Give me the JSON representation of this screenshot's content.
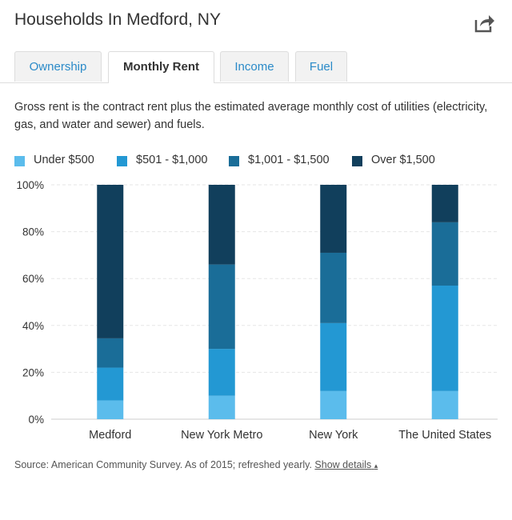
{
  "header": {
    "title": "Households In Medford, NY",
    "share_icon": "share-icon"
  },
  "tabs": [
    {
      "label": "Ownership",
      "active": false
    },
    {
      "label": "Monthly Rent",
      "active": true
    },
    {
      "label": "Income",
      "active": false
    },
    {
      "label": "Fuel",
      "active": false
    }
  ],
  "description": "Gross rent is the contract rent plus the estimated average monthly cost of utilities (electricity, gas, and water and sewer) and fuels.",
  "colors": {
    "under_500": "#5bbcec",
    "501_1000": "#2398d3",
    "1001_1500": "#1a6d98",
    "over_1500": "#113f5c",
    "grid": "#e6e6e6",
    "link": "#2a8ac8"
  },
  "chart_data": {
    "type": "bar",
    "stacked": true,
    "categories": [
      "Medford",
      "New York Metro",
      "New York",
      "The United States"
    ],
    "series": [
      {
        "name": "Under $500",
        "values": [
          8,
          10,
          12,
          12
        ]
      },
      {
        "name": "$501 - $1,000",
        "values": [
          14,
          20,
          29,
          45
        ]
      },
      {
        "name": "$1,001 - $1,500",
        "values": [
          12.5,
          36,
          30,
          27
        ]
      },
      {
        "name": "Over $1,500",
        "values": [
          65.5,
          34,
          29,
          16
        ]
      }
    ],
    "ylim": [
      0,
      100
    ],
    "yticks": [
      "0%",
      "20%",
      "40%",
      "60%",
      "80%",
      "100%"
    ],
    "ytick_values": [
      0,
      20,
      40,
      60,
      80,
      100
    ],
    "grid": true,
    "legend": "top-left"
  },
  "footer": {
    "source_text": "Source: American Community Survey. As of 2015; refreshed yearly.",
    "show_details": "Show details",
    "caret": "▴"
  }
}
